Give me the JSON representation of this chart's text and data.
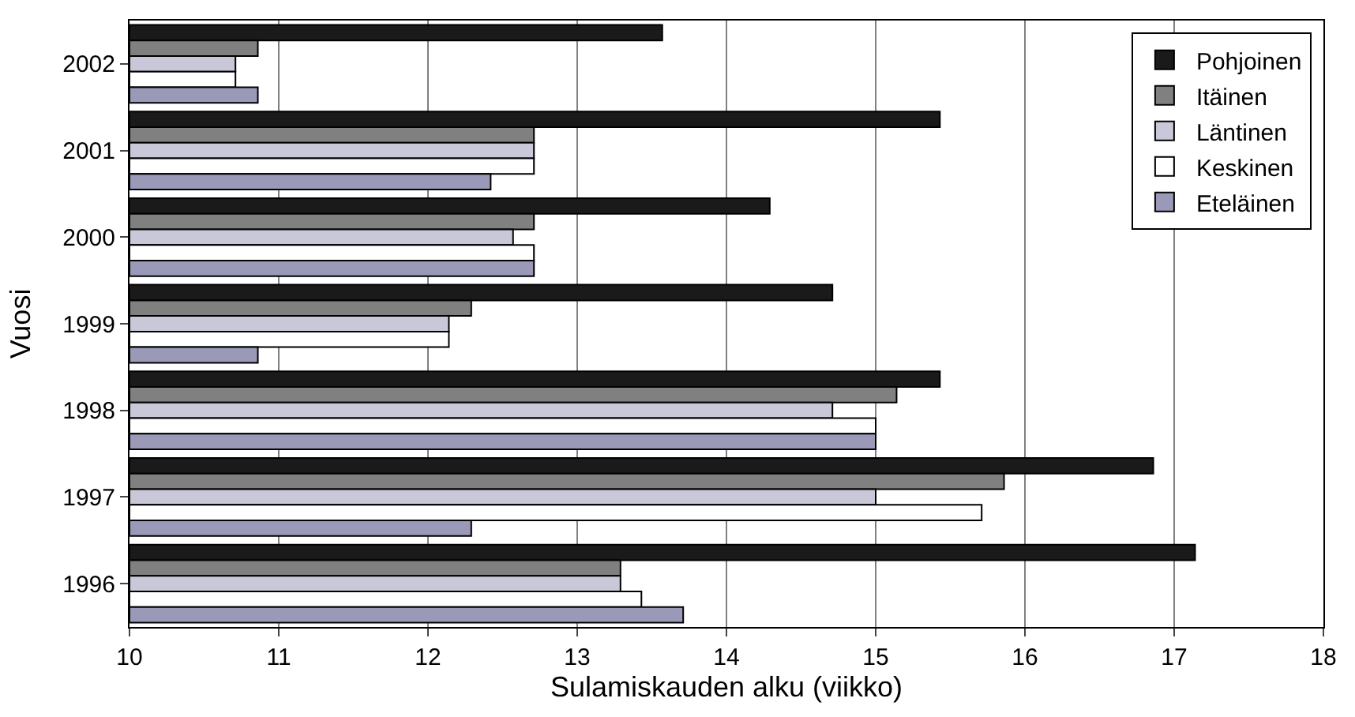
{
  "chart_data": {
    "type": "bar",
    "orientation": "horizontal",
    "xlabel": "Sulamiskauden alku (viikko)",
    "ylabel": "Vuosi",
    "categories": [
      "2002",
      "2001",
      "2000",
      "1999",
      "1998",
      "1997",
      "1996"
    ],
    "series": [
      {
        "name": "Pohjoinen",
        "color": "#1a1a1a",
        "values": [
          13.57,
          15.43,
          14.29,
          14.71,
          15.43,
          16.86,
          17.14
        ]
      },
      {
        "name": "Itäinen",
        "color": "#808080",
        "values": [
          10.86,
          12.71,
          12.71,
          12.29,
          15.14,
          15.86,
          13.29
        ]
      },
      {
        "name": "Läntinen",
        "color": "#c8c8d8",
        "values": [
          10.71,
          12.71,
          12.57,
          12.14,
          14.71,
          15.0,
          13.29
        ]
      },
      {
        "name": "Keskinen",
        "color": "#ffffff",
        "values": [
          10.71,
          12.71,
          12.71,
          12.14,
          15.0,
          15.71,
          13.43
        ]
      },
      {
        "name": "Eteläinen",
        "color": "#9a9ab8",
        "values": [
          10.86,
          12.42,
          12.71,
          10.86,
          15.0,
          12.29,
          13.71
        ]
      }
    ],
    "xlim": [
      10,
      18
    ],
    "xticks": [
      10,
      11,
      12,
      13,
      14,
      15,
      16,
      17,
      18
    ],
    "grid": "x",
    "legend": "top right"
  }
}
